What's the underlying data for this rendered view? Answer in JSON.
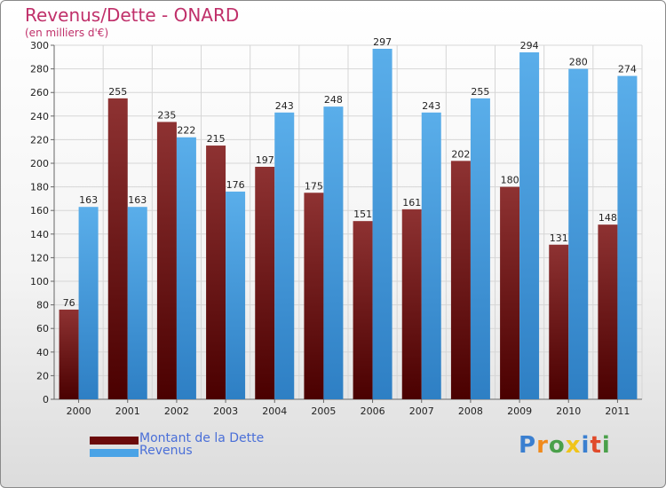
{
  "title": "Revenus/Dette - ONARD",
  "subtitle": "(en milliers d'€)",
  "legend": [
    {
      "label": "Montant de la Dette",
      "color": "#6b0a0a"
    },
    {
      "label": "Revenus",
      "color": "#4aa3e6"
    }
  ],
  "logo": {
    "text": "Proxiti",
    "letters": [
      {
        "ch": "P",
        "color": "#3a7fd0"
      },
      {
        "ch": "r",
        "color": "#f08a1c"
      },
      {
        "ch": "o",
        "color": "#4aa04a"
      },
      {
        "ch": "x",
        "color": "#f0c419"
      },
      {
        "ch": "i",
        "color": "#3a7fd0"
      },
      {
        "ch": "t",
        "color": "#e04a2a"
      },
      {
        "ch": "i",
        "color": "#4aa04a"
      }
    ]
  },
  "chart_data": {
    "type": "bar",
    "categories": [
      "2000",
      "2001",
      "2002",
      "2003",
      "2004",
      "2005",
      "2006",
      "2007",
      "2008",
      "2009",
      "2010",
      "2011"
    ],
    "series": [
      {
        "name": "Montant de la Dette",
        "values": [
          76,
          255,
          235,
          215,
          197,
          175,
          151,
          161,
          202,
          180,
          131,
          148
        ],
        "color": "#7a1a1a"
      },
      {
        "name": "Revenus",
        "values": [
          163,
          163,
          222,
          176,
          243,
          248,
          297,
          243,
          255,
          294,
          280,
          274
        ],
        "color": "#4aa3e6"
      }
    ],
    "ylim": [
      0,
      300
    ],
    "yticks": [
      0,
      20,
      40,
      60,
      80,
      100,
      120,
      140,
      160,
      180,
      200,
      220,
      240,
      260,
      280,
      300
    ],
    "grid": true
  }
}
